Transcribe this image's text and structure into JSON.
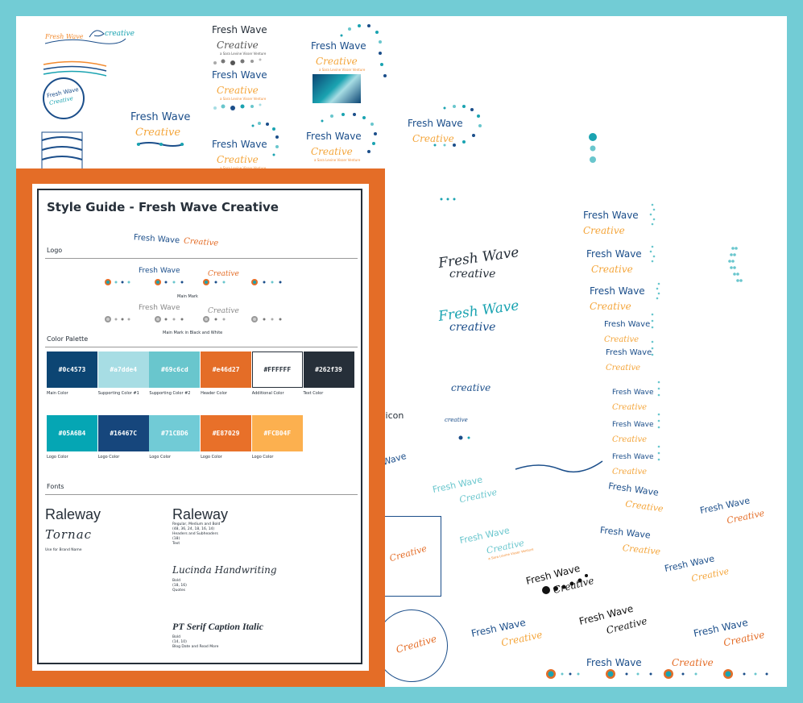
{
  "brand": {
    "fresh_wave": "Fresh Wave",
    "creative": "Creative",
    "creative_lower": "creative",
    "tagline": "a Sara Levine Visser Venture"
  },
  "labels": {
    "favicon_partial": "vicon",
    "wave_partial": "Wave"
  },
  "style_guide": {
    "title": "Style Guide - Fresh Wave Creative",
    "logo_section": "Logo",
    "main_mark": "Main Mark",
    "main_mark_bw": "Main Mark in Black and White",
    "color_section": "Color Palette",
    "colors_row1": [
      {
        "hex": "#0c4573",
        "label": "Main Color",
        "fill": "#0c4573",
        "text": "#ffffff"
      },
      {
        "hex": "#a7dde4",
        "label": "Supporting Color #1",
        "fill": "#a7dde4",
        "text": "#ffffff"
      },
      {
        "hex": "#69c6cd",
        "label": "Supporting Color #2",
        "fill": "#69c6cd",
        "text": "#ffffff"
      },
      {
        "hex": "#e46d27",
        "label": "Header Color",
        "fill": "#e46d27",
        "text": "#ffffff"
      },
      {
        "hex": "#FFFFFF",
        "label": "Additional Color",
        "fill": "#ffffff",
        "text": "#262f39"
      },
      {
        "hex": "#262f39",
        "label": "Text Color",
        "fill": "#262f39",
        "text": "#ffffff"
      }
    ],
    "colors_row2": [
      {
        "hex": "#05A6B4",
        "label": "Logo Color",
        "fill": "#05a6b4"
      },
      {
        "hex": "#16467C",
        "label": "Logo Color",
        "fill": "#16467c"
      },
      {
        "hex": "#71CBD6",
        "label": "Logo Color",
        "fill": "#71cbd6"
      },
      {
        "hex": "#E87029",
        "label": "Logo Color",
        "fill": "#e87029"
      },
      {
        "hex": "#FCB04F",
        "label": "Logo Color",
        "fill": "#fcb04f"
      }
    ],
    "fonts_section": "Fonts",
    "font_raleway_left": "Raleway",
    "font_tornac": "Tornac",
    "tornac_use": "Use for Brand Name",
    "font_raleway_right": "Raleway",
    "raleway_desc": [
      "Regular, Medium and Bold",
      "(48, 36, 24, 18, 16, 14)",
      "Headers and Subheaders",
      "(18)",
      "Text"
    ],
    "font_lucinda": "Lucinda Handwriting",
    "lucinda_desc": [
      "Bold",
      "(18, 16)",
      "Quotes"
    ],
    "font_ptserif": "PT Serif Caption Italic",
    "ptserif_desc": [
      "Bold",
      "(14, 10)",
      "Blog Date and Read More"
    ]
  },
  "colors": {
    "frame": "#72ccd5",
    "orange": "#e46d27",
    "navy": "#1b4e8a",
    "gold": "#f4a53a",
    "teal": "#69c6cd"
  }
}
